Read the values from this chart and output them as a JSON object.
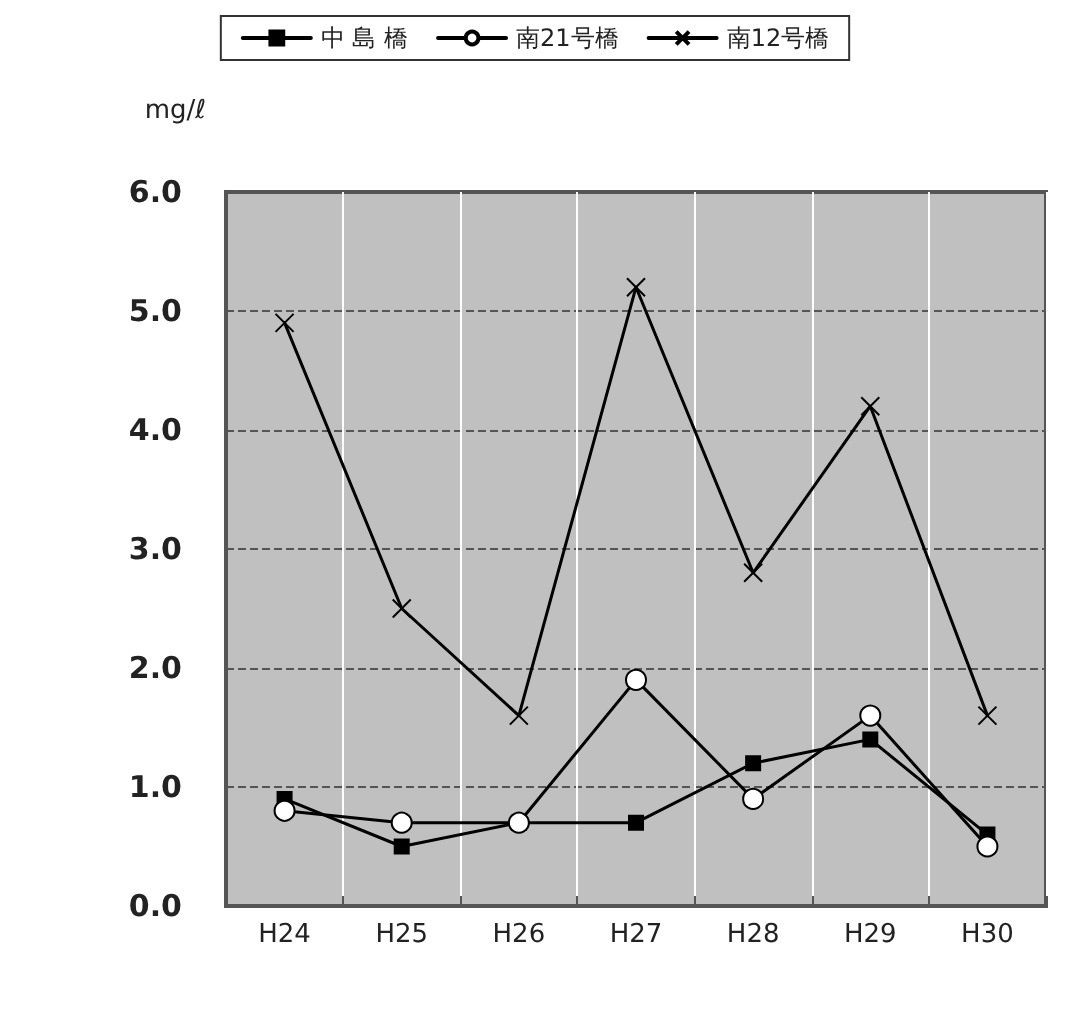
{
  "chart_data": {
    "type": "line",
    "ylabel": "mg/ℓ",
    "categories": [
      "H24",
      "H25",
      "H26",
      "H27",
      "H28",
      "H29",
      "H30"
    ],
    "series": [
      {
        "name": "中 島 橋",
        "color": "#000000",
        "marker": "square",
        "values": [
          0.9,
          0.5,
          0.7,
          0.7,
          1.2,
          1.4,
          0.6
        ]
      },
      {
        "name": "南21号橋",
        "color": "#000000",
        "marker": "circle",
        "values": [
          0.8,
          0.7,
          0.7,
          1.9,
          0.9,
          1.6,
          0.5
        ]
      },
      {
        "name": "南12号橋",
        "color": "#000000",
        "marker": "cross",
        "values": [
          4.9,
          2.5,
          1.6,
          5.2,
          2.8,
          4.2,
          1.6
        ]
      }
    ],
    "ylim": [
      0,
      6
    ],
    "yticks": [
      {
        "value": 0,
        "label": "0.0"
      },
      {
        "value": 1,
        "label": "1.0"
      },
      {
        "value": 2,
        "label": "2.0"
      },
      {
        "value": 3,
        "label": "3.0"
      },
      {
        "value": 4,
        "label": "4.0"
      },
      {
        "value": 5,
        "label": "5.0"
      },
      {
        "value": 6,
        "label": "6.0"
      }
    ],
    "grid": true,
    "legend": "top",
    "line_style": "solid"
  }
}
